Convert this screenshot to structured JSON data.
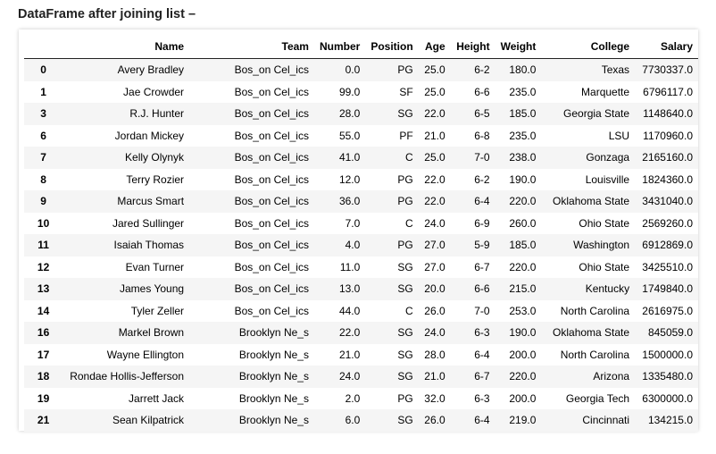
{
  "heading": "DataFrame after joining list –",
  "columns": [
    "",
    "Name",
    "Team",
    "Number",
    "Position",
    "Age",
    "Height",
    "Weight",
    "College",
    "Salary"
  ],
  "rows": [
    [
      "0",
      "Avery Bradley",
      "Bos_on Cel_ics",
      "0.0",
      "PG",
      "25.0",
      "6-2",
      "180.0",
      "Texas",
      "7730337.0"
    ],
    [
      "1",
      "Jae Crowder",
      "Bos_on Cel_ics",
      "99.0",
      "SF",
      "25.0",
      "6-6",
      "235.0",
      "Marquette",
      "6796117.0"
    ],
    [
      "3",
      "R.J. Hunter",
      "Bos_on Cel_ics",
      "28.0",
      "SG",
      "22.0",
      "6-5",
      "185.0",
      "Georgia State",
      "1148640.0"
    ],
    [
      "6",
      "Jordan Mickey",
      "Bos_on Cel_ics",
      "55.0",
      "PF",
      "21.0",
      "6-8",
      "235.0",
      "LSU",
      "1170960.0"
    ],
    [
      "7",
      "Kelly Olynyk",
      "Bos_on Cel_ics",
      "41.0",
      "C",
      "25.0",
      "7-0",
      "238.0",
      "Gonzaga",
      "2165160.0"
    ],
    [
      "8",
      "Terry Rozier",
      "Bos_on Cel_ics",
      "12.0",
      "PG",
      "22.0",
      "6-2",
      "190.0",
      "Louisville",
      "1824360.0"
    ],
    [
      "9",
      "Marcus Smart",
      "Bos_on Cel_ics",
      "36.0",
      "PG",
      "22.0",
      "6-4",
      "220.0",
      "Oklahoma State",
      "3431040.0"
    ],
    [
      "10",
      "Jared Sullinger",
      "Bos_on Cel_ics",
      "7.0",
      "C",
      "24.0",
      "6-9",
      "260.0",
      "Ohio State",
      "2569260.0"
    ],
    [
      "11",
      "Isaiah Thomas",
      "Bos_on Cel_ics",
      "4.0",
      "PG",
      "27.0",
      "5-9",
      "185.0",
      "Washington",
      "6912869.0"
    ],
    [
      "12",
      "Evan Turner",
      "Bos_on Cel_ics",
      "11.0",
      "SG",
      "27.0",
      "6-7",
      "220.0",
      "Ohio State",
      "3425510.0"
    ],
    [
      "13",
      "James Young",
      "Bos_on Cel_ics",
      "13.0",
      "SG",
      "20.0",
      "6-6",
      "215.0",
      "Kentucky",
      "1749840.0"
    ],
    [
      "14",
      "Tyler Zeller",
      "Bos_on Cel_ics",
      "44.0",
      "C",
      "26.0",
      "7-0",
      "253.0",
      "North Carolina",
      "2616975.0"
    ],
    [
      "16",
      "Markel Brown",
      "Brooklyn Ne_s",
      "22.0",
      "SG",
      "24.0",
      "6-3",
      "190.0",
      "Oklahoma State",
      "845059.0"
    ],
    [
      "17",
      "Wayne Ellington",
      "Brooklyn Ne_s",
      "21.0",
      "SG",
      "28.0",
      "6-4",
      "200.0",
      "North Carolina",
      "1500000.0"
    ],
    [
      "18",
      "Rondae Hollis-Jefferson",
      "Brooklyn Ne_s",
      "24.0",
      "SG",
      "21.0",
      "6-7",
      "220.0",
      "Arizona",
      "1335480.0"
    ],
    [
      "19",
      "Jarrett Jack",
      "Brooklyn Ne_s",
      "2.0",
      "PG",
      "32.0",
      "6-3",
      "200.0",
      "Georgia Tech",
      "6300000.0"
    ],
    [
      "21",
      "Sean Kilpatrick",
      "Brooklyn Ne_s",
      "6.0",
      "SG",
      "26.0",
      "6-4",
      "219.0",
      "Cincinnati",
      "134215.0"
    ]
  ]
}
